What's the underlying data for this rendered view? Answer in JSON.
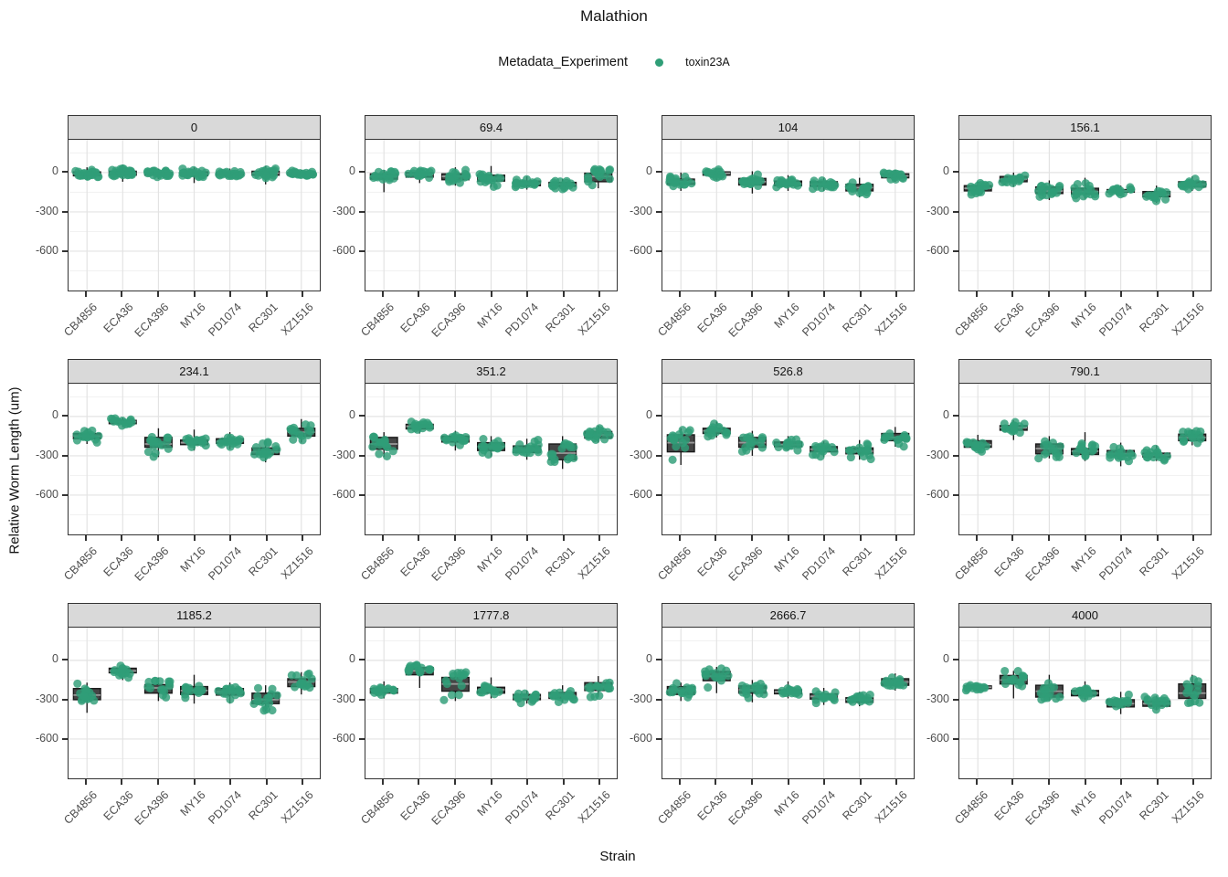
{
  "title": "Malathion",
  "legend": {
    "title": "Metadata_Experiment",
    "items": [
      {
        "label": "toxin23A",
        "color": "#2f9e77"
      }
    ]
  },
  "axes": {
    "y_label": "Relative Worm Length (um)",
    "x_label": "Strain",
    "y_ticks": [
      "0",
      "-300",
      "-600"
    ],
    "y_tick_values": [
      0,
      -300,
      -600
    ],
    "y_domain_top": 250,
    "y_domain_bottom": -900
  },
  "colors": {
    "point": "#2f9e77",
    "box_fill": "#454545",
    "box_stroke": "#1a1a1a",
    "median": "#999999",
    "strip_bg": "#d9d9d9",
    "panel_border": "#333333",
    "grid_major": "#e3e3e3",
    "grid_minor": "#f1f1f1",
    "tick_text": "#4d4d4d"
  },
  "chart_data": {
    "type": "boxplot-jitter",
    "title": "Malathion",
    "facet_variable": "Malathion dose",
    "series_name": "toxin23A",
    "xlabel": "Strain",
    "ylabel": "Relative Worm Length (um)",
    "ylim": [
      -900,
      250
    ],
    "grid": true,
    "legend_position": "top",
    "categories": [
      "CB4856",
      "ECA36",
      "ECA396",
      "MY16",
      "PD1074",
      "RC301",
      "XZ1516"
    ],
    "stats_format": [
      "whisker_low",
      "q1",
      "median",
      "q3",
      "whisker_high"
    ],
    "facets": [
      {
        "label": "0",
        "n_points": 24,
        "boxes": [
          [
            -60,
            -25,
            -10,
            5,
            40
          ],
          [
            -70,
            -20,
            -5,
            10,
            60
          ],
          [
            -50,
            -20,
            -10,
            0,
            30
          ],
          [
            -80,
            -25,
            -10,
            5,
            40
          ],
          [
            -40,
            -20,
            -10,
            0,
            30
          ],
          [
            -90,
            -20,
            -5,
            10,
            50
          ],
          [
            -40,
            -20,
            -10,
            0,
            20
          ]
        ]
      },
      {
        "label": "69.4",
        "n_points": 17,
        "boxes": [
          [
            -150,
            -50,
            -30,
            -10,
            20
          ],
          [
            -80,
            -35,
            -15,
            0,
            30
          ],
          [
            -100,
            -55,
            -30,
            -10,
            40
          ],
          [
            -110,
            -65,
            -45,
            -20,
            50
          ],
          [
            -130,
            -100,
            -85,
            -65,
            -30
          ],
          [
            -130,
            -105,
            -90,
            -75,
            -50
          ],
          [
            -120,
            -70,
            -30,
            -5,
            30
          ]
        ]
      },
      {
        "label": "104",
        "n_points": 17,
        "boxes": [
          [
            -140,
            -90,
            -70,
            -50,
            0
          ],
          [
            -60,
            -20,
            -5,
            5,
            30
          ],
          [
            -160,
            -95,
            -70,
            -45,
            10
          ],
          [
            -140,
            -100,
            -85,
            -65,
            -20
          ],
          [
            -140,
            -105,
            -90,
            -70,
            -40
          ],
          [
            -190,
            -140,
            -115,
            -90,
            -40
          ],
          [
            -70,
            -40,
            -25,
            -10,
            20
          ]
        ]
      },
      {
        "label": "156.1",
        "n_points": 16,
        "boxes": [
          [
            -170,
            -140,
            -120,
            -100,
            -70
          ],
          [
            -110,
            -70,
            -50,
            -30,
            0
          ],
          [
            -210,
            -160,
            -140,
            -110,
            -60
          ],
          [
            -200,
            -165,
            -145,
            -120,
            -40
          ],
          [
            -180,
            -150,
            -140,
            -130,
            -100
          ],
          [
            -230,
            -185,
            -170,
            -145,
            -100
          ],
          [
            -140,
            -110,
            -90,
            -70,
            -30
          ]
        ]
      },
      {
        "label": "234.1",
        "n_points": 16,
        "boxes": [
          [
            -210,
            -170,
            -150,
            -130,
            -90
          ],
          [
            -80,
            -55,
            -40,
            -30,
            -10
          ],
          [
            -310,
            -235,
            -210,
            -160,
            -90
          ],
          [
            -260,
            -215,
            -200,
            -180,
            -100
          ],
          [
            -250,
            -205,
            -190,
            -170,
            -120
          ],
          [
            -350,
            -290,
            -270,
            -240,
            -180
          ],
          [
            -200,
            -150,
            -120,
            -90,
            -20
          ]
        ]
      },
      {
        "label": "351.2",
        "n_points": 16,
        "boxes": [
          [
            -310,
            -250,
            -210,
            -160,
            -120
          ],
          [
            -130,
            -95,
            -75,
            -60,
            -40
          ],
          [
            -260,
            -195,
            -175,
            -150,
            -110
          ],
          [
            -310,
            -260,
            -230,
            -200,
            -150
          ],
          [
            -330,
            -275,
            -250,
            -225,
            -170
          ],
          [
            -400,
            -330,
            -280,
            -210,
            -150
          ],
          [
            -200,
            -165,
            -140,
            -115,
            -70
          ]
        ]
      },
      {
        "label": "526.8",
        "n_points": 15,
        "boxes": [
          [
            -370,
            -270,
            -200,
            -140,
            -90
          ],
          [
            -160,
            -130,
            -110,
            -90,
            -40
          ],
          [
            -300,
            -235,
            -200,
            -160,
            -110
          ],
          [
            -260,
            -230,
            -215,
            -195,
            -150
          ],
          [
            -310,
            -270,
            -250,
            -230,
            -190
          ],
          [
            -330,
            -285,
            -265,
            -240,
            -180
          ],
          [
            -230,
            -185,
            -160,
            -130,
            -80
          ]
        ]
      },
      {
        "label": "790.1",
        "n_points": 15,
        "boxes": [
          [
            -270,
            -235,
            -215,
            -185,
            -140
          ],
          [
            -180,
            -105,
            -85,
            -70,
            -30
          ],
          [
            -320,
            -285,
            -245,
            -210,
            -150
          ],
          [
            -340,
            -290,
            -265,
            -245,
            -120
          ],
          [
            -380,
            -300,
            -285,
            -260,
            -200
          ],
          [
            -340,
            -310,
            -295,
            -280,
            -220
          ],
          [
            -220,
            -185,
            -160,
            -135,
            -100
          ]
        ]
      },
      {
        "label": "1185.2",
        "n_points": 15,
        "boxes": [
          [
            -400,
            -300,
            -265,
            -215,
            -170
          ],
          [
            -150,
            -95,
            -80,
            -60,
            -40
          ],
          [
            -310,
            -250,
            -210,
            -185,
            -130
          ],
          [
            -330,
            -260,
            -230,
            -200,
            -110
          ],
          [
            -330,
            -265,
            -240,
            -215,
            -170
          ],
          [
            -390,
            -330,
            -300,
            -250,
            -190
          ],
          [
            -260,
            -200,
            -165,
            -140,
            -90
          ]
        ]
      },
      {
        "label": "1777.8",
        "n_points": 15,
        "boxes": [
          [
            -290,
            -250,
            -230,
            -215,
            -160
          ],
          [
            -210,
            -110,
            -80,
            -55,
            -30
          ],
          [
            -310,
            -235,
            -180,
            -130,
            -90
          ],
          [
            -290,
            -250,
            -225,
            -205,
            -130
          ],
          [
            -330,
            -300,
            -280,
            -260,
            -230
          ],
          [
            -320,
            -290,
            -270,
            -245,
            -190
          ],
          [
            -280,
            -230,
            -200,
            -170,
            -120
          ]
        ]
      },
      {
        "label": "2666.7",
        "n_points": 15,
        "boxes": [
          [
            -310,
            -260,
            -230,
            -200,
            -170
          ],
          [
            -250,
            -155,
            -120,
            -85,
            -50
          ],
          [
            -320,
            -250,
            -225,
            -195,
            -150
          ],
          [
            -290,
            -255,
            -240,
            -225,
            -160
          ],
          [
            -340,
            -295,
            -275,
            -255,
            -210
          ],
          [
            -350,
            -320,
            -300,
            -285,
            -240
          ],
          [
            -230,
            -190,
            -165,
            -140,
            -100
          ]
        ]
      },
      {
        "label": "4000",
        "n_points": 15,
        "boxes": [
          [
            -230,
            -215,
            -205,
            -195,
            -180
          ],
          [
            -290,
            -180,
            -150,
            -115,
            -80
          ],
          [
            -310,
            -280,
            -235,
            -190,
            -110
          ],
          [
            -300,
            -270,
            -250,
            -230,
            -160
          ],
          [
            -410,
            -355,
            -330,
            -300,
            -240
          ],
          [
            -380,
            -350,
            -330,
            -310,
            -270
          ],
          [
            -340,
            -290,
            -250,
            -180,
            -110
          ]
        ]
      }
    ]
  }
}
